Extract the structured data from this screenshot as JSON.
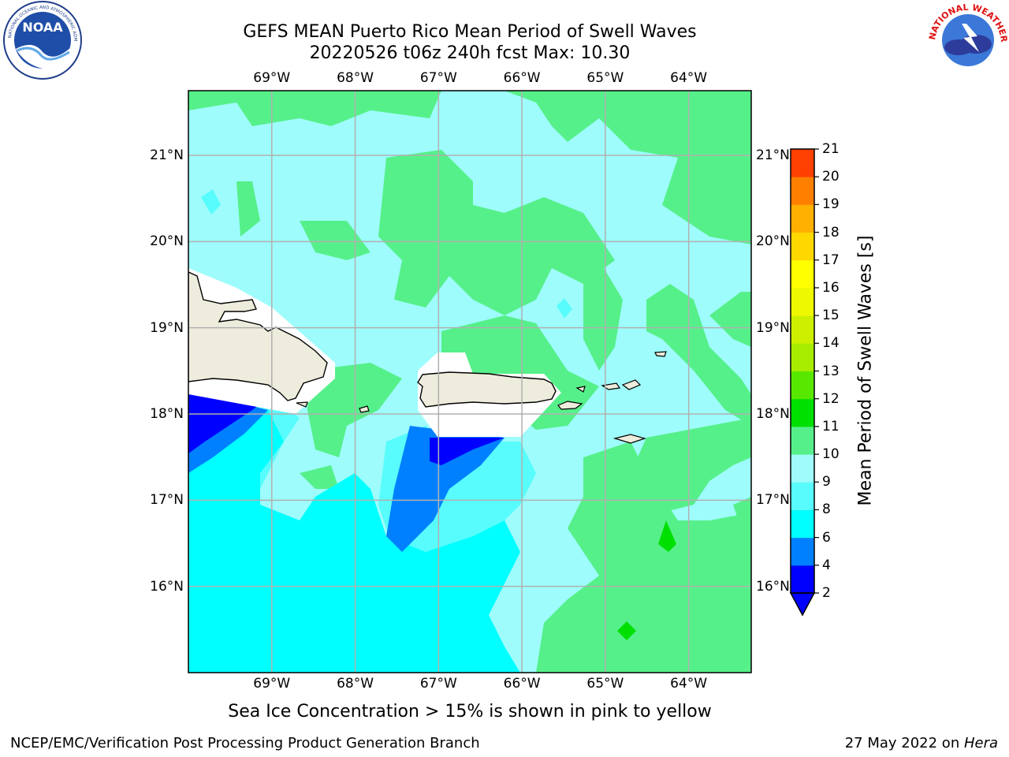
{
  "header": {
    "title_line1": "GEFS MEAN Puerto Rico Mean Period of Swell Waves",
    "title_line2": "20220526 t06z 240h fcst   Max: 10.30"
  },
  "logos": {
    "noaa_text": "NOAA",
    "noaa_ring_text": "NATIONAL OCEANIC AND ATMOSPHERIC ADMINISTRATION · U.S. DEPARTMENT OF COMMERCE",
    "nws_ring_text": "NATIONAL WEATHER SERVICE"
  },
  "map": {
    "lon_labels": [
      "69°W",
      "68°W",
      "67°W",
      "66°W",
      "65°W",
      "64°W"
    ],
    "lat_labels": [
      "21°N",
      "20°N",
      "19°N",
      "18°N",
      "17°N",
      "16°N"
    ],
    "lon_range": [
      -70.0,
      -63.25
    ],
    "lat_range": [
      15.0,
      21.75
    ],
    "lon_ticks": [
      -69,
      -68,
      -67,
      -66,
      -65,
      -64
    ],
    "lat_ticks": [
      21,
      20,
      19,
      18,
      17,
      16
    ],
    "ocean_color": "#9efcfc",
    "land_color": "#eeecdc"
  },
  "colorbar": {
    "label": "Mean Period of Swell Waves [s]",
    "levels": [
      2,
      4,
      6,
      8,
      9,
      10,
      11,
      12,
      13,
      14,
      15,
      16,
      17,
      18,
      19,
      20,
      21
    ],
    "colors": [
      "#0000ff",
      "#0080ff",
      "#00ffff",
      "#58fcfc",
      "#a0fcfc",
      "#56f08a",
      "#00e000",
      "#58e800",
      "#a8ec00",
      "#ccf000",
      "#eef800",
      "#ffff00",
      "#ffd800",
      "#ffb000",
      "#ff8000",
      "#ff4000",
      "#ff0000"
    ],
    "under_color": "#0000ff"
  },
  "notes": {
    "sea_ice": "Sea Ice Concentration > 15% is shown in pink to yellow"
  },
  "footer": {
    "left": "NCEP/EMC/Verification Post Processing Product Generation Branch",
    "right_prefix": "27 May 2022 on ",
    "right_host": "Hera"
  }
}
